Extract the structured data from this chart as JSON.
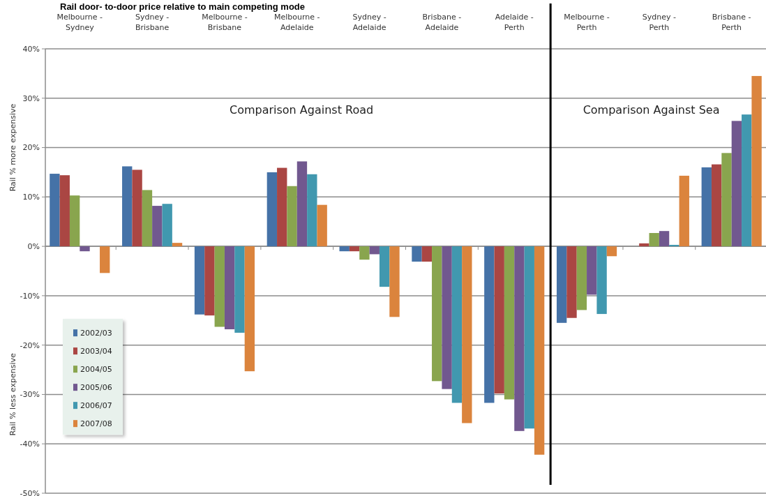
{
  "chart_data": {
    "type": "bar",
    "title": "Rail door- to-door price relative to main competing mode",
    "ylabel": "Rail % more expensive",
    "annotations": [
      "Comparison Against Road",
      "Comparison Against Sea",
      "Rail % less expensive"
    ],
    "categories": [
      "Melbourne - Sydney",
      "Sydney - Brisbane",
      "Melbourne - Brisbane",
      "Melbourne - Adelaide",
      "Sydney - Adelaide",
      "Brisbane - Adelaide",
      "Adelaide - Perth",
      "Melbourne - Perth",
      "Sydney - Perth",
      "Brisbane - Perth"
    ],
    "series": [
      {
        "name": "2002/03",
        "color": "#4572a7",
        "values": [
          14.7,
          16.2,
          -13.8,
          15.0,
          -1.0,
          -3.1,
          -31.7,
          -15.5,
          0,
          16.0
        ]
      },
      {
        "name": "2003/04",
        "color": "#aa4643",
        "values": [
          14.4,
          15.5,
          -14.0,
          15.9,
          -1.0,
          -3.1,
          -29.8,
          -14.5,
          0.6,
          16.6
        ]
      },
      {
        "name": "2004/05",
        "color": "#89a54e",
        "values": [
          10.3,
          11.4,
          -16.3,
          12.2,
          -2.7,
          -27.3,
          -31.0,
          -12.9,
          2.7,
          18.9
        ]
      },
      {
        "name": "2005/06",
        "color": "#71588f",
        "values": [
          -1.0,
          8.2,
          -16.8,
          17.2,
          -1.6,
          -28.9,
          -37.4,
          -9.8,
          3.1,
          25.4
        ]
      },
      {
        "name": "2006/07",
        "color": "#4198af",
        "values": [
          0,
          8.6,
          -17.5,
          14.6,
          -8.2,
          -31.7,
          -36.9,
          -13.7,
          0.3,
          26.7
        ]
      },
      {
        "name": "2007/08",
        "color": "#db843d",
        "values": [
          -5.4,
          0.7,
          -25.3,
          8.4,
          -14.3,
          -35.8,
          -42.2,
          -2.0,
          14.3,
          34.5
        ]
      }
    ],
    "ylim": [
      -50,
      40
    ],
    "yticks": [
      {
        "value": -50,
        "label": "-50%"
      },
      {
        "value": -40,
        "label": "-40%"
      },
      {
        "value": -30,
        "label": "-30%"
      },
      {
        "value": -20,
        "label": "-20%"
      },
      {
        "value": -10,
        "label": "-10%"
      },
      {
        "value": 0,
        "label": "0%"
      },
      {
        "value": 10,
        "label": "10%"
      },
      {
        "value": 20,
        "label": "20%"
      },
      {
        "value": 30,
        "label": "30%"
      },
      {
        "value": 40,
        "label": "40%"
      }
    ],
    "grid": "y",
    "legend": "bottom left"
  }
}
